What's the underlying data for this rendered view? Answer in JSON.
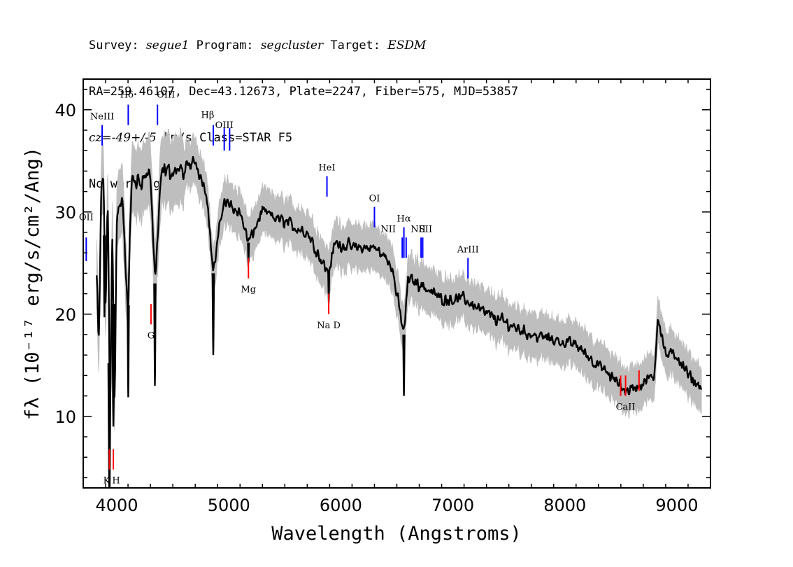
{
  "header": {
    "line1": {
      "survey_label": "Survey:",
      "survey": "segue1",
      "program_label": "Program:",
      "program": "segcluster",
      "target_label": "Target:",
      "target": "ESDM"
    },
    "line2": "RA=259.46107, Dec=43.12673, Plate=2247, Fiber=575, MJD=53857",
    "line3": {
      "cz_label": "cz=",
      "cz_value": "-49+/-5",
      "cz_unit": " km/s",
      "class_text": " Class=STAR F5"
    },
    "line4": "No warnings."
  },
  "chart_data": {
    "type": "line",
    "xlabel": "Wavelength (Angstroms)",
    "ylabel": "fλ (10⁻¹⁷ erg/s/cm²/Ang)",
    "xlim": [
      3700,
      9300
    ],
    "ylim": [
      3,
      43
    ],
    "x_ticks": [
      4000,
      5000,
      6000,
      7000,
      8000,
      9000
    ],
    "y_ticks": [
      10,
      20,
      30,
      40
    ],
    "grid": false,
    "colors": {
      "flux": "#000000",
      "error_band": "#bebebe",
      "emission_line": "#0000ff",
      "absorption_line": "#ff0000"
    },
    "spectrum_anchors": {
      "x": [
        3820,
        3840,
        3860,
        3880,
        3900,
        3920,
        3940,
        3960,
        3980,
        4000,
        4050,
        4100,
        4130,
        4200,
        4300,
        4340,
        4400,
        4500,
        4600,
        4700,
        4800,
        4861,
        4950,
        5100,
        5175,
        5300,
        5500,
        5700,
        5889,
        5950,
        6100,
        6300,
        6450,
        6563,
        6600,
        6700,
        6900,
        7100,
        7300,
        7500,
        7700,
        7900,
        8100,
        8300,
        8498,
        8542,
        8662,
        8800,
        8830,
        8900,
        9000,
        9100,
        9200
      ],
      "y": [
        24,
        16,
        32,
        34,
        20,
        32,
        8,
        30,
        10,
        30,
        31,
        20,
        33,
        33,
        34,
        23,
        34,
        34,
        34,
        35,
        32,
        24,
        31,
        30,
        27,
        30,
        29,
        28,
        24,
        27,
        26.5,
        26.5,
        25,
        18,
        23.5,
        23,
        21.5,
        21.5,
        20,
        19,
        18,
        17.5,
        17,
        15,
        13,
        12.5,
        13,
        14,
        20,
        16,
        16,
        14,
        13
      ]
    },
    "absorption_features": [
      {
        "x": 3934,
        "depth": 14,
        "width": 10
      },
      {
        "x": 3969,
        "depth": 12,
        "width": 10
      },
      {
        "x": 3889,
        "depth": 8,
        "width": 6
      },
      {
        "x": 4102,
        "depth": 9,
        "width": 6
      },
      {
        "x": 4340,
        "depth": 10,
        "width": 7
      },
      {
        "x": 4861,
        "depth": 8,
        "width": 7
      },
      {
        "x": 5175,
        "depth": 2,
        "width": 5
      },
      {
        "x": 5892,
        "depth": 3,
        "width": 5
      },
      {
        "x": 6563,
        "depth": 6,
        "width": 6
      }
    ],
    "emission_lines": [
      {
        "label": "OII",
        "x": 3727,
        "y_low": 25.2,
        "y_high": 27.5,
        "label_dx": 0,
        "label_dy": -25
      },
      {
        "label": "NeIII",
        "x": 3869,
        "y_low": 36.5,
        "y_high": 38.5,
        "label_dx": 0,
        "label_dy": -8
      },
      {
        "label": "Hδ",
        "x": 4102,
        "y_low": 38.5,
        "y_high": 40.5,
        "label_dx": -2,
        "label_dy": -10
      },
      {
        "label": "OIII",
        "x": 4363,
        "y_low": 38.5,
        "y_high": 40.5,
        "label_dx": 12,
        "label_dy": -10
      },
      {
        "label": "Hβ",
        "x": 4861,
        "y_low": 36.5,
        "y_high": 38.5,
        "label_dx": -8,
        "label_dy": -10
      },
      {
        "label": "OIII",
        "x": 4959,
        "y_low": 36.0,
        "y_high": 38.2,
        "label_dx": 0,
        "label_dy": 0
      },
      {
        "label": "",
        "x": 5007,
        "y_low": 36.0,
        "y_high": 38.2,
        "label_dx": 0,
        "label_dy": 0
      },
      {
        "label": "HeI",
        "x": 5876,
        "y_low": 31.5,
        "y_high": 33.5,
        "label_dx": 0,
        "label_dy": -8
      },
      {
        "label": "OI",
        "x": 6300,
        "y_low": 28.5,
        "y_high": 30.5,
        "label_dx": 0,
        "label_dy": -8
      },
      {
        "label": "NII",
        "x": 6548,
        "y_low": 25.5,
        "y_high": 27.5,
        "label_dx": -20,
        "label_dy": -8
      },
      {
        "label": "Hα",
        "x": 6563,
        "y_low": 25.5,
        "y_high": 28.5,
        "label_dx": 0,
        "label_dy": -8
      },
      {
        "label": "",
        "x": 6583,
        "y_low": 25.5,
        "y_high": 27.5,
        "label_dx": 0,
        "label_dy": 0
      },
      {
        "label": "NII",
        "x": 6716,
        "y_low": 25.5,
        "y_high": 27.5,
        "label_dx": -4,
        "label_dy": -8
      },
      {
        "label": "SII",
        "x": 6731,
        "y_low": 25.5,
        "y_high": 27.5,
        "label_dx": 4,
        "label_dy": -8
      },
      {
        "label": "ArIII",
        "x": 7135,
        "y_low": 23.5,
        "y_high": 25.5,
        "label_dx": 0,
        "label_dy": -8
      }
    ],
    "absorption_lines": [
      {
        "label": "K",
        "x": 3934,
        "y_low": 4.8,
        "y_high": 6.8,
        "label_dx": -4,
        "label_dy": 20
      },
      {
        "label": "H",
        "x": 3969,
        "y_low": 4.8,
        "y_high": 6.8,
        "label_dx": 4,
        "label_dy": 20
      },
      {
        "label": "G",
        "x": 4305,
        "y_low": 19.0,
        "y_high": 21.0,
        "label_dx": 0,
        "label_dy": 20
      },
      {
        "label": "Mg",
        "x": 5175,
        "y_low": 23.5,
        "y_high": 25.5,
        "label_dx": 0,
        "label_dy": 20
      },
      {
        "label": "Na D",
        "x": 5892,
        "y_low": 20.0,
        "y_high": 22.0,
        "label_dx": 0,
        "label_dy": 20
      },
      {
        "label": "",
        "x": 8498,
        "y_low": 12.0,
        "y_high": 14.0,
        "label_dx": 0,
        "label_dy": 0
      },
      {
        "label": "CaII",
        "x": 8542,
        "y_low": 12.0,
        "y_high": 14.0,
        "label_dx": 0,
        "label_dy": 20
      },
      {
        "label": "",
        "x": 8662,
        "y_low": 12.5,
        "y_high": 14.5,
        "label_dx": 0,
        "label_dy": 0
      }
    ]
  }
}
